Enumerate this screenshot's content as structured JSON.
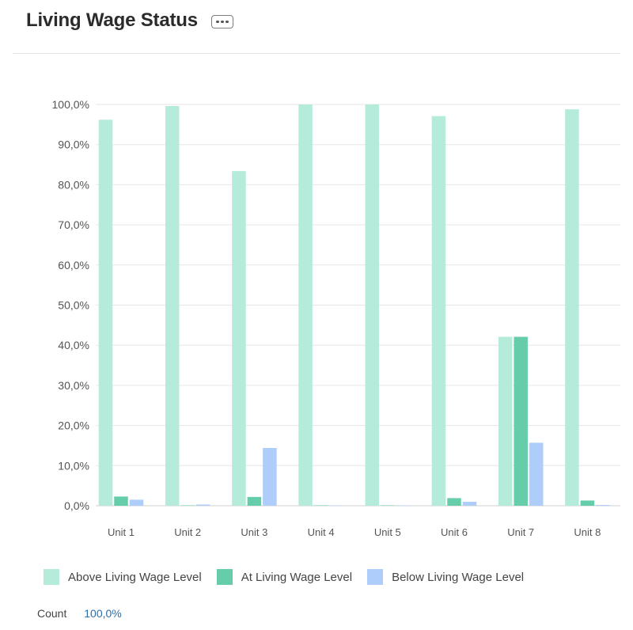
{
  "header": {
    "title": "Living Wage Status"
  },
  "footer": {
    "count_label": "Count",
    "count_value": "100,0%"
  },
  "colors": {
    "above": "#b5ebda",
    "at": "#66cdaa",
    "below": "#aecdfa"
  },
  "icons": {
    "more": "more-horizontal-icon"
  },
  "chart_data": {
    "type": "bar",
    "title": "Living Wage Status",
    "xlabel": "",
    "ylabel": "",
    "categories": [
      "Unit 1",
      "Unit 2",
      "Unit 3",
      "Unit 4",
      "Unit 5",
      "Unit 6",
      "Unit 7",
      "Unit 8"
    ],
    "series": [
      {
        "name": "Above Living Wage Level",
        "color": "#b5ebda",
        "values": [
          96.2,
          99.6,
          83.4,
          100.0,
          100.0,
          97.1,
          42.1,
          98.8
        ]
      },
      {
        "name": "At Living Wage Level",
        "color": "#66cdaa",
        "values": [
          2.3,
          0.1,
          2.2,
          0.1,
          0.1,
          1.9,
          42.1,
          1.3
        ]
      },
      {
        "name": "Below Living Wage Level",
        "color": "#aecdfa",
        "values": [
          1.5,
          0.3,
          14.4,
          0.1,
          0.1,
          1.0,
          15.7,
          0.2
        ]
      }
    ],
    "ylim": [
      0,
      100
    ],
    "yticks": [
      0,
      10,
      20,
      30,
      40,
      50,
      60,
      70,
      80,
      90,
      100
    ],
    "ytick_labels": [
      "0,0%",
      "10,0%",
      "20,0%",
      "30,0%",
      "40,0%",
      "50,0%",
      "60,0%",
      "70,0%",
      "80,0%",
      "90,0%",
      "100,0%"
    ],
    "grid": true,
    "legend_position": "bottom-left"
  }
}
